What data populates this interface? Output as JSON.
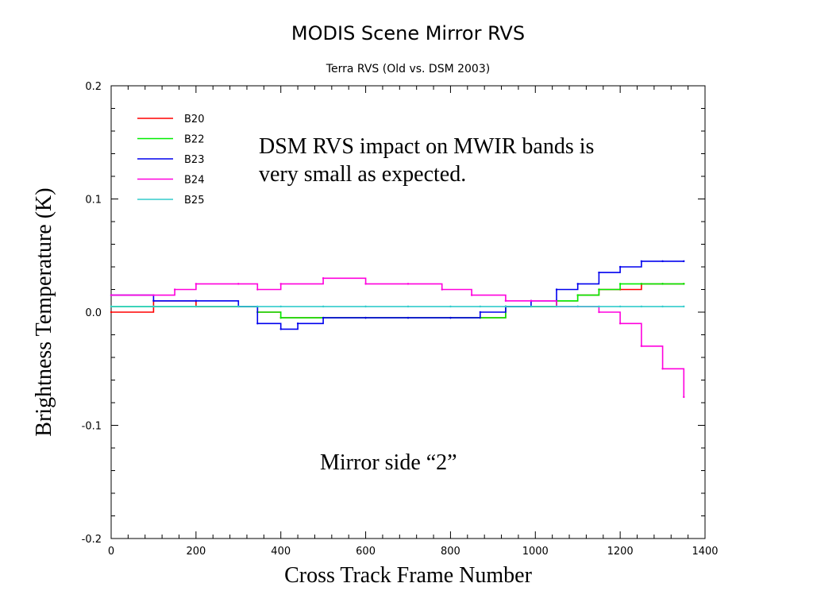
{
  "chart_data": {
    "type": "line",
    "title": "MODIS Scene Mirror RVS",
    "subtitle": "Terra RVS (Old vs. DSM 2003)",
    "xlabel": "Cross Track Frame Number",
    "ylabel": "Brightness Temperature (K)",
    "xlim": [
      0,
      1400
    ],
    "ylim": [
      -0.2,
      0.2
    ],
    "x_ticks": [
      0,
      200,
      400,
      600,
      800,
      1000,
      1200,
      1400
    ],
    "x_tick_labels": [
      "0",
      "200",
      "400",
      "600",
      "800",
      "1000",
      "1200",
      "1400"
    ],
    "y_ticks": [
      0.2,
      0.1,
      0.0,
      -0.1,
      -0.2
    ],
    "y_tick_labels": [
      "0.2",
      "0.1",
      "0.0",
      "-0.1",
      "-0.2"
    ],
    "grid": false,
    "legend_position": "top-left",
    "annotations": [
      {
        "lines": [
          "DSM RVS impact on MWIR bands is",
          "very small as expected."
        ]
      },
      {
        "lines": [
          "Mirror side “2”"
        ]
      }
    ],
    "series": [
      {
        "name": "B20",
        "color": "#ff0000",
        "x": [
          0,
          100,
          200,
          300,
          345,
          400,
          500,
          600,
          700,
          800,
          870,
          930,
          990,
          1050,
          1100,
          1150,
          1200,
          1250,
          1300,
          1350
        ],
        "y": [
          0.0,
          0.01,
          0.005,
          0.005,
          0.0,
          -0.005,
          -0.005,
          -0.005,
          -0.005,
          -0.005,
          -0.005,
          0.005,
          0.005,
          0.01,
          0.015,
          0.02,
          0.02,
          0.025,
          0.025,
          0.025
        ]
      },
      {
        "name": "B22",
        "color": "#00ee00",
        "x": [
          0,
          100,
          200,
          300,
          345,
          400,
          500,
          600,
          700,
          800,
          870,
          930,
          990,
          1050,
          1100,
          1150,
          1200,
          1250,
          1300,
          1350
        ],
        "y": [
          0.005,
          0.005,
          0.005,
          0.005,
          0.0,
          -0.005,
          -0.005,
          -0.005,
          -0.005,
          -0.005,
          -0.005,
          0.005,
          0.005,
          0.01,
          0.015,
          0.02,
          0.025,
          0.025,
          0.025,
          0.025
        ]
      },
      {
        "name": "B23",
        "color": "#0000ee",
        "x": [
          0,
          100,
          200,
          300,
          345,
          400,
          440,
          500,
          600,
          700,
          800,
          870,
          930,
          990,
          1050,
          1100,
          1150,
          1200,
          1250,
          1300,
          1350
        ],
        "y": [
          0.015,
          0.01,
          0.01,
          0.005,
          -0.01,
          -0.015,
          -0.01,
          -0.005,
          -0.005,
          -0.005,
          -0.005,
          0.0,
          0.005,
          0.01,
          0.02,
          0.025,
          0.035,
          0.04,
          0.045,
          0.045,
          0.045
        ]
      },
      {
        "name": "B24",
        "color": "#ff00dd",
        "x": [
          0,
          100,
          150,
          200,
          300,
          345,
          400,
          500,
          600,
          700,
          780,
          850,
          930,
          990,
          1050,
          1100,
          1150,
          1200,
          1250,
          1300,
          1350
        ],
        "y": [
          0.015,
          0.015,
          0.02,
          0.025,
          0.025,
          0.02,
          0.025,
          0.03,
          0.025,
          0.025,
          0.02,
          0.015,
          0.01,
          0.01,
          0.005,
          0.005,
          0.0,
          -0.01,
          -0.03,
          -0.05,
          -0.075
        ]
      },
      {
        "name": "B25",
        "color": "#33cccc",
        "x": [
          0,
          100,
          200,
          300,
          345,
          400,
          500,
          600,
          700,
          800,
          870,
          930,
          990,
          1050,
          1100,
          1150,
          1200,
          1250,
          1300,
          1350
        ],
        "y": [
          0.005,
          0.005,
          0.005,
          0.005,
          0.005,
          0.005,
          0.005,
          0.005,
          0.005,
          0.005,
          0.005,
          0.005,
          0.005,
          0.005,
          0.005,
          0.005,
          0.005,
          0.005,
          0.005,
          0.005
        ]
      }
    ]
  }
}
